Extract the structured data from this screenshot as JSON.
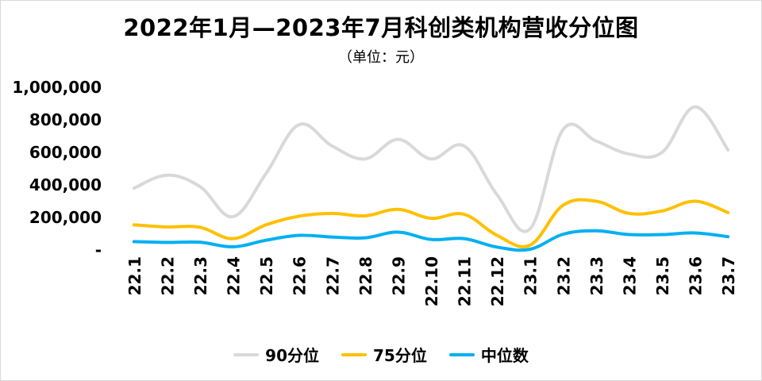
{
  "chart_data": {
    "type": "line",
    "title": "2022年1月—2023年7月科创类机构营收分位图",
    "subtitle": "（单位：元）",
    "categories": [
      "22.1",
      "22.2",
      "22.3",
      "22.4",
      "22.5",
      "22.6",
      "22.7",
      "22.8",
      "22.9",
      "22.10",
      "22.11",
      "22.12",
      "23.1",
      "23.2",
      "23.3",
      "23.4",
      "23.5",
      "23.6",
      "23.7"
    ],
    "y_ticks": [
      "1,000,000",
      "800,000",
      "600,000",
      "400,000",
      "200,000",
      "-"
    ],
    "ylim": [
      0,
      1000000
    ],
    "grid": false,
    "legend_position": "bottom",
    "series": [
      {
        "name": "90分位",
        "color": "#d9d9d9",
        "values": [
          380000,
          460000,
          390000,
          205000,
          470000,
          770000,
          640000,
          560000,
          680000,
          560000,
          640000,
          340000,
          130000,
          740000,
          670000,
          590000,
          600000,
          880000,
          615000
        ]
      },
      {
        "name": "75分位",
        "color": "#ffc000",
        "values": [
          155000,
          142000,
          140000,
          70000,
          155000,
          208000,
          225000,
          210000,
          250000,
          195000,
          220000,
          90000,
          30000,
          275000,
          300000,
          225000,
          240000,
          300000,
          230000
        ]
      },
      {
        "name": "中位数",
        "color": "#00b0f0",
        "values": [
          52000,
          47000,
          48000,
          20000,
          60000,
          90000,
          80000,
          75000,
          110000,
          65000,
          70000,
          18000,
          5000,
          97000,
          118000,
          95000,
          95000,
          105000,
          82000
        ]
      }
    ]
  }
}
